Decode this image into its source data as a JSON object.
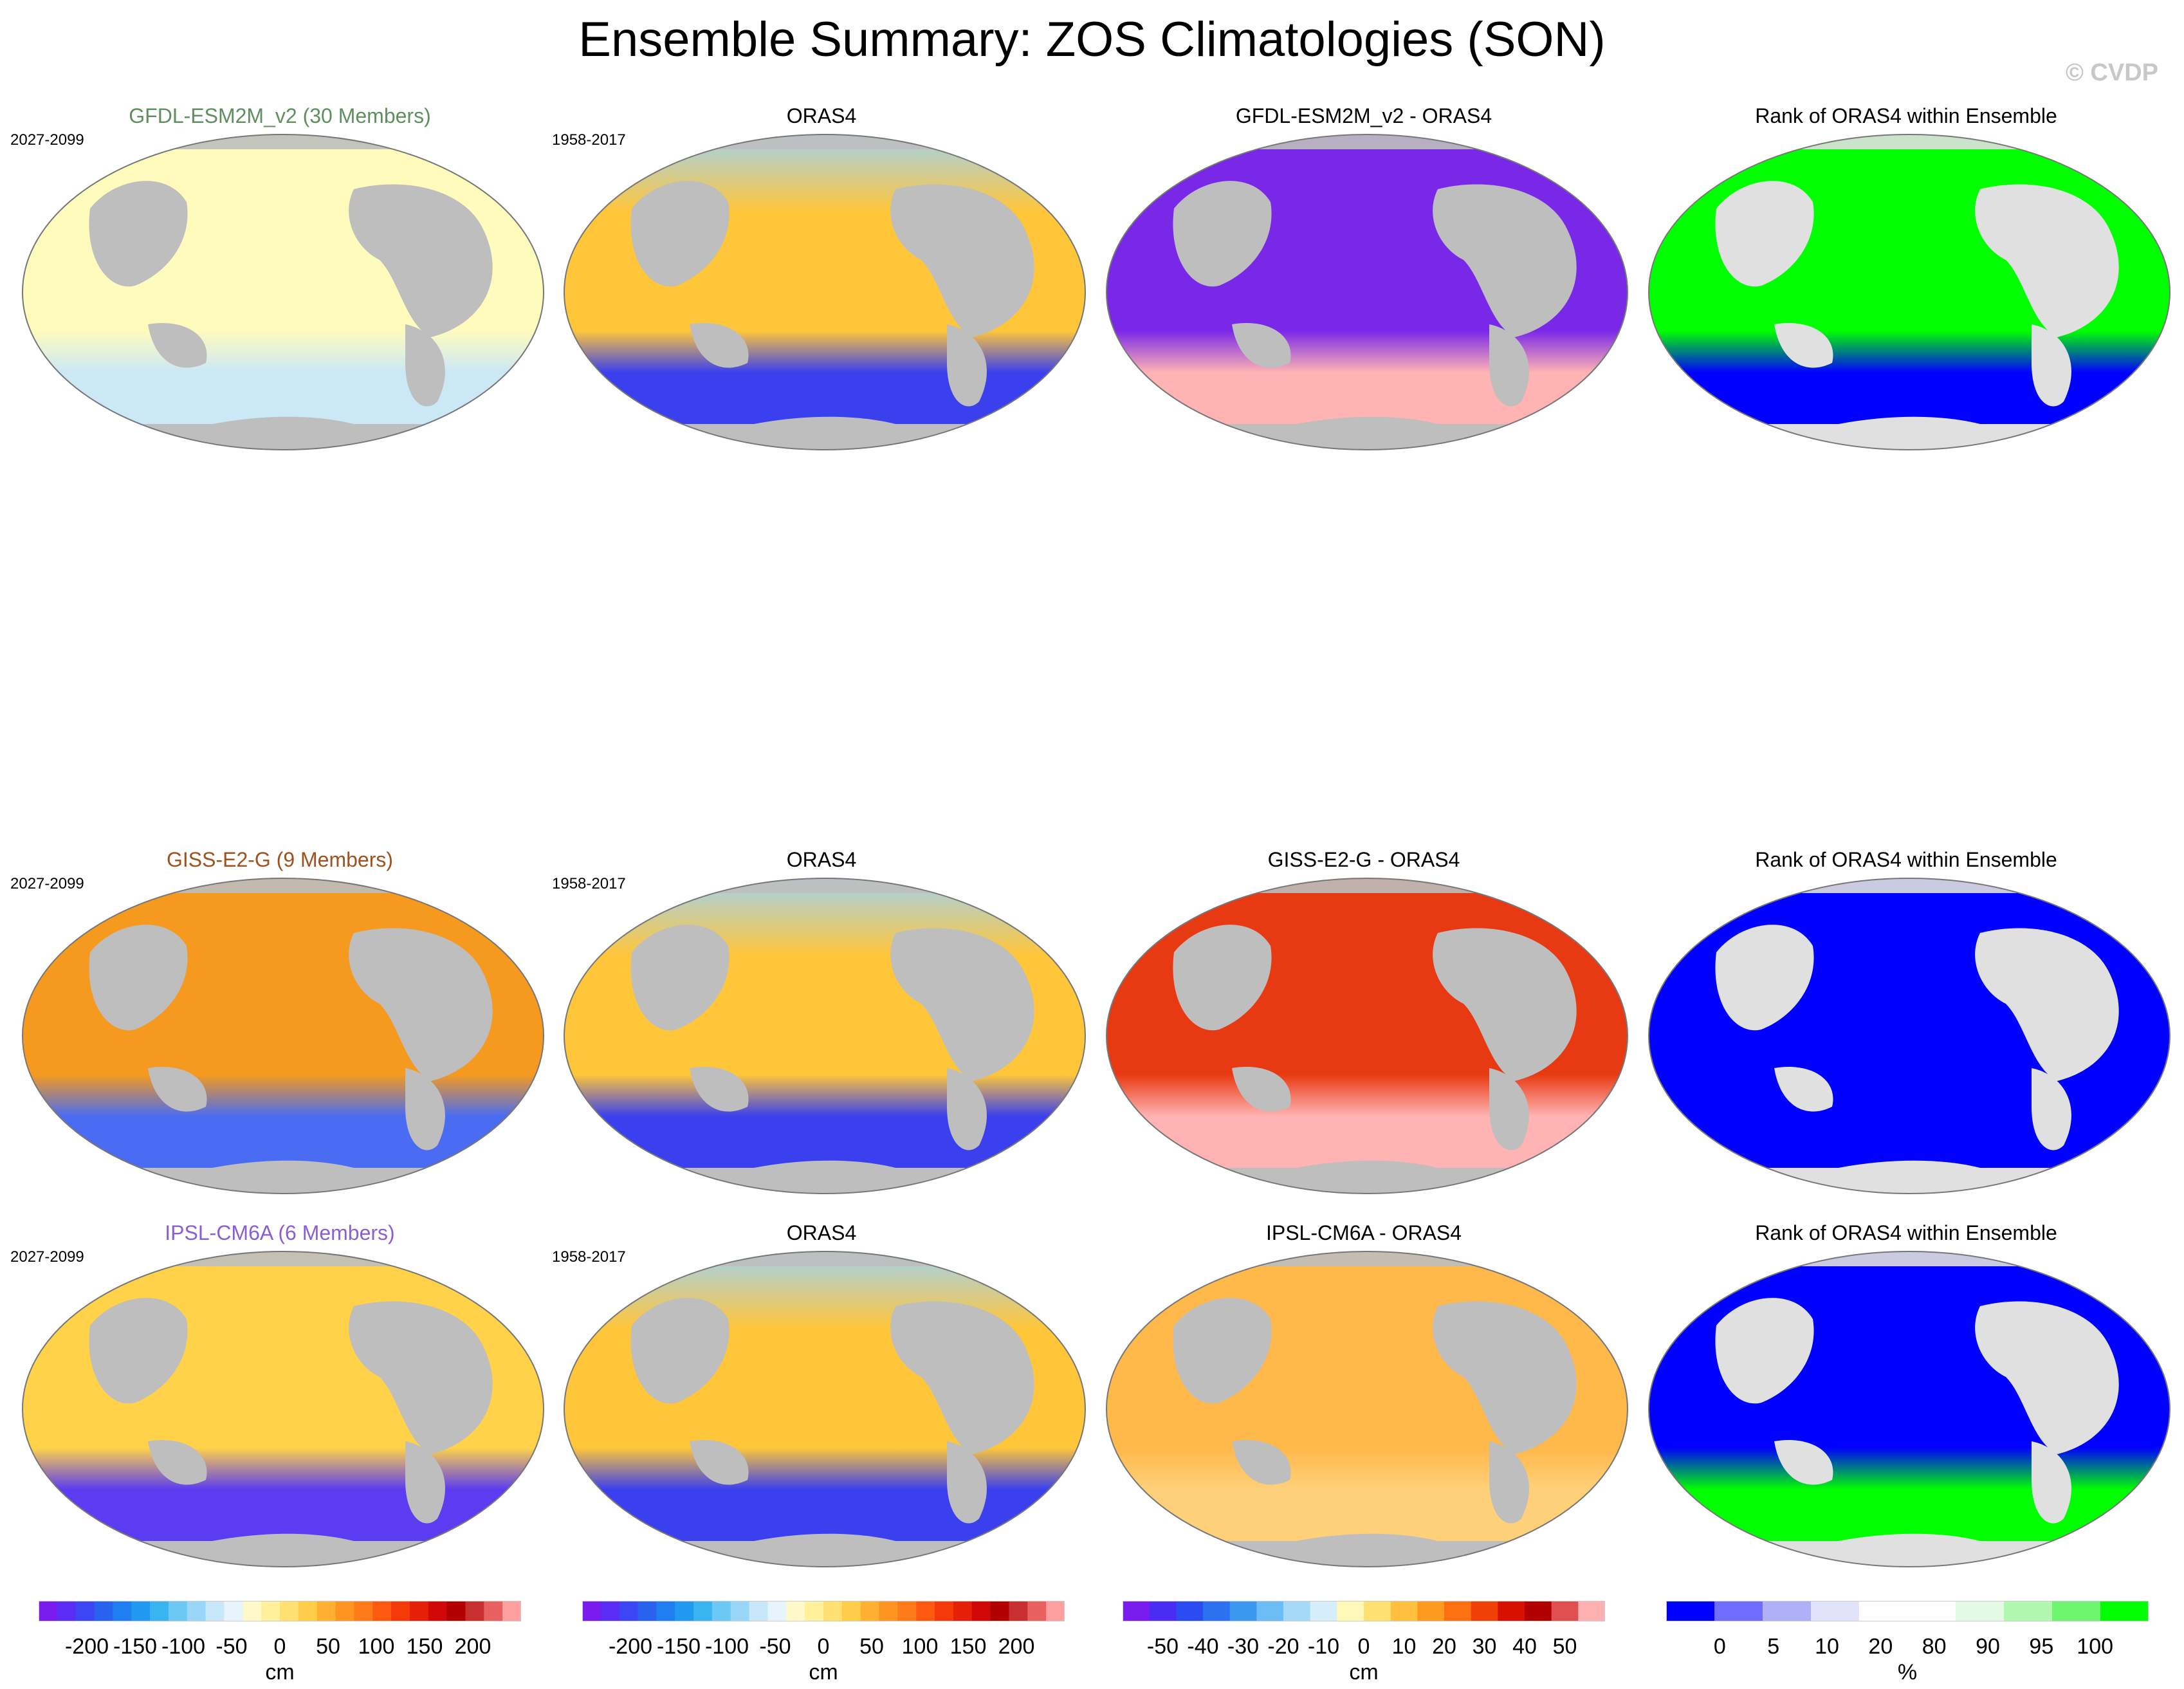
{
  "title": "Ensemble Summary: ZOS Climatologies (SON)",
  "watermark": "© CVDP",
  "rows": [
    {
      "model": "GFDL-ESM2M_v2 (30 Members)",
      "model_color": "#5f8f5f",
      "model_period": "2027-2099",
      "obs": "ORAS4",
      "obs_period": "1958-2017",
      "diff": "GFDL-ESM2M_v2 - ORAS4",
      "rank": "Rank of ORAS4 within Ensemble",
      "model_fill": "#fffbbd",
      "model_south": "#cbe8f7",
      "diff_fill": "#7a28e8",
      "diff_south": "#ffb3b3",
      "rank_fill": "#00ff00",
      "rank_south": "#0000ff"
    },
    {
      "model": "GISS-E2-G (9 Members)",
      "model_color": "#a0521e",
      "model_period": "2027-2099",
      "obs": "ORAS4",
      "obs_period": "1958-2017",
      "diff": "GISS-E2-G - ORAS4",
      "rank": "Rank of ORAS4 within Ensemble",
      "model_fill": "#f59a1e",
      "model_south": "#4a6cf2",
      "diff_fill": "#e83a12",
      "diff_south": "#ffb3b3",
      "rank_fill": "#0000ff",
      "rank_south": "#0000ff"
    },
    {
      "model": "IPSL-CM6A (6 Members)",
      "model_color": "#8a5fd6",
      "model_period": "2027-2099",
      "obs": "ORAS4",
      "obs_period": "1958-2017",
      "diff": "IPSL-CM6A - ORAS4",
      "rank": "Rank of ORAS4 within Ensemble",
      "model_fill": "#ffd24a",
      "model_south": "#5b3cf0",
      "diff_fill": "#ffb84a",
      "diff_south": "#ffd07a",
      "rank_fill": "#0000ff",
      "rank_south": "#00ff00"
    }
  ],
  "obs_fill": "#ffc63a",
  "obs_south": "#3a40ee",
  "land_color": "#bebebe",
  "colorbars": [
    {
      "unit": "cm",
      "ticks": [
        "-200",
        "-150",
        "-100",
        "-50",
        "0",
        "50",
        "100",
        "150",
        "200"
      ],
      "colors": [
        "#7a1cf0",
        "#5a2df5",
        "#3c46f5",
        "#2a62f0",
        "#1f7ef0",
        "#1f9af0",
        "#3ab4f0",
        "#6cc8f5",
        "#9ad6f7",
        "#c8e8f9",
        "#e6f4fb",
        "#fff8c8",
        "#fff09a",
        "#ffe070",
        "#ffcc4a",
        "#ffb030",
        "#ff9420",
        "#ff7a18",
        "#ff5a10",
        "#f53a0a",
        "#e62008",
        "#d00808",
        "#b00000",
        "#c83030",
        "#e86060",
        "#ffa0a0"
      ]
    },
    {
      "unit": "cm",
      "ticks": [
        "-200",
        "-150",
        "-100",
        "-50",
        "0",
        "50",
        "100",
        "150",
        "200"
      ],
      "colors": [
        "#7a1cf0",
        "#5a2df5",
        "#3c46f5",
        "#2a62f0",
        "#1f7ef0",
        "#1f9af0",
        "#3ab4f0",
        "#6cc8f5",
        "#9ad6f7",
        "#c8e8f9",
        "#e6f4fb",
        "#fff8c8",
        "#fff09a",
        "#ffe070",
        "#ffcc4a",
        "#ffb030",
        "#ff9420",
        "#ff7a18",
        "#ff5a10",
        "#f53a0a",
        "#e62008",
        "#d00808",
        "#b00000",
        "#c83030",
        "#e86060",
        "#ffa0a0"
      ]
    },
    {
      "unit": "cm",
      "ticks": [
        "-50",
        "-40",
        "-30",
        "-20",
        "-10",
        "0",
        "10",
        "20",
        "30",
        "40",
        "50"
      ],
      "colors": [
        "#7a1cf0",
        "#4a2cf5",
        "#2a4cf0",
        "#2a72f0",
        "#3a98f0",
        "#6cbcf5",
        "#a6d8f7",
        "#d6eefa",
        "#fff8b8",
        "#ffe070",
        "#ffc040",
        "#ff9a20",
        "#ff7010",
        "#f04008",
        "#d81000",
        "#b00000",
        "#e05050",
        "#ffb0b0"
      ]
    },
    {
      "unit": "%",
      "ticks": [
        "0",
        "5",
        "10",
        "20",
        "80",
        "90",
        "95",
        "100"
      ],
      "colors": [
        "#0000ff",
        "#6e6efa",
        "#b0b0f8",
        "#e2e2fb",
        "#ffffff",
        "#ffffff",
        "#e2fbe2",
        "#b0f8b0",
        "#6ef56e",
        "#00ff00"
      ]
    }
  ]
}
